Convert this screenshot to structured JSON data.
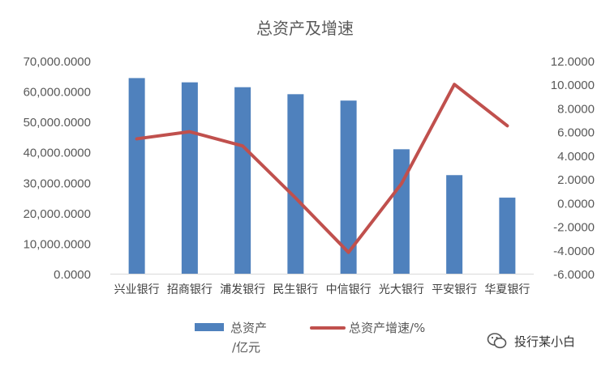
{
  "chart_data": {
    "type": "bar",
    "title": "总资产及增速",
    "categories": [
      "兴业银行",
      "招商银行",
      "浦发银行",
      "民生银行",
      "中信银行",
      "光大银行",
      "平安银行",
      "华夏银行"
    ],
    "series": [
      {
        "name": "总资产/亿元",
        "type": "bar",
        "axis": "left",
        "color": "#4F81BD",
        "values": [
          64300,
          62900,
          61300,
          59000,
          56900,
          40900,
          32400,
          25000
        ]
      },
      {
        "name": "总资产增速/%",
        "type": "line",
        "axis": "right",
        "color": "#C0504D",
        "values": [
          5.4,
          6.0,
          4.8,
          0.4,
          -4.2,
          1.6,
          10.0,
          6.5
        ]
      }
    ],
    "y_left": {
      "ylim": [
        0,
        70000
      ],
      "ticks": [
        "0.0000",
        "10,000.0000",
        "20,000.0000",
        "30,000.0000",
        "40,000.0000",
        "50,000.0000",
        "60,000.0000",
        "70,000.0000"
      ]
    },
    "y_right": {
      "ylim": [
        -6,
        12
      ],
      "ticks": [
        "-6.0000",
        "-4.0000",
        "-2.0000",
        "0.0000",
        "2.0000",
        "4.0000",
        "6.0000",
        "8.0000",
        "10.0000",
        "12.0000"
      ]
    },
    "grid": false,
    "legend": "bottom",
    "legend_labels": {
      "bar_line1": "总资产",
      "bar_line2": "/亿元",
      "line": "总资产增速/%"
    }
  },
  "watermark": {
    "text": "投行某小白",
    "icon": "wechat-icon"
  }
}
